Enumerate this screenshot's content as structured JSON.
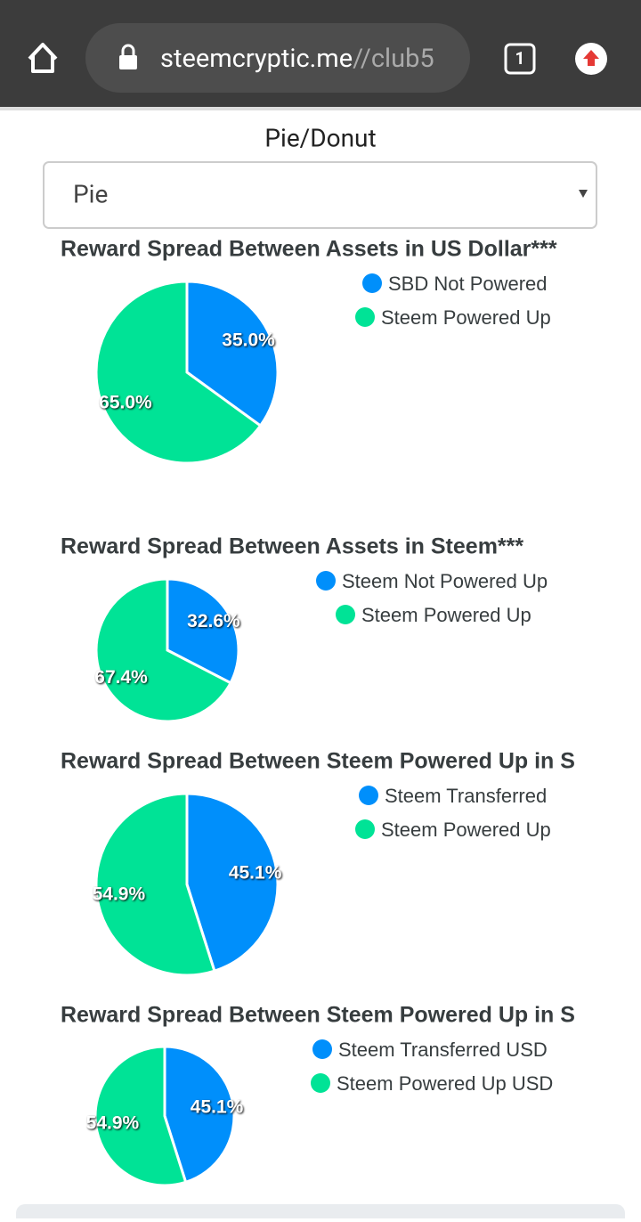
{
  "browser": {
    "url_host": "steemcryptic.me",
    "url_path": "//club5",
    "tab_count": "1"
  },
  "control": {
    "label": "Pie/Donut",
    "selected": "Pie"
  },
  "chart_data": [
    {
      "type": "pie",
      "title": "Reward Spread Between Assets in US Dollar***",
      "categories": [
        "SBD Not Powered",
        "Steem Powered Up"
      ],
      "values": [
        35.0,
        65.0
      ],
      "value_labels": [
        "35.0%",
        "65.0%"
      ],
      "colors": [
        "#008ffb",
        "#00e396"
      ]
    },
    {
      "type": "pie",
      "title": "Reward Spread Between Assets in Steem***",
      "categories": [
        "Steem Not Powered Up",
        "Steem Powered Up"
      ],
      "values": [
        32.6,
        67.4
      ],
      "value_labels": [
        "32.6%",
        "67.4%"
      ],
      "colors": [
        "#008ffb",
        "#00e396"
      ]
    },
    {
      "type": "pie",
      "title": "Reward Spread Between Steem Powered Up in S",
      "categories": [
        "Steem Transferred",
        "Steem Powered Up"
      ],
      "values": [
        45.1,
        54.9
      ],
      "value_labels": [
        "45.1%",
        "54.9%"
      ],
      "colors": [
        "#008ffb",
        "#00e396"
      ]
    },
    {
      "type": "pie",
      "title": "Reward Spread Between Steem Powered Up in S",
      "categories": [
        "Steem Transferred USD",
        "Steem Powered Up USD"
      ],
      "values": [
        45.1,
        54.9
      ],
      "value_labels": [
        "45.1%",
        "54.9%"
      ],
      "colors": [
        "#008ffb",
        "#00e396"
      ]
    }
  ]
}
